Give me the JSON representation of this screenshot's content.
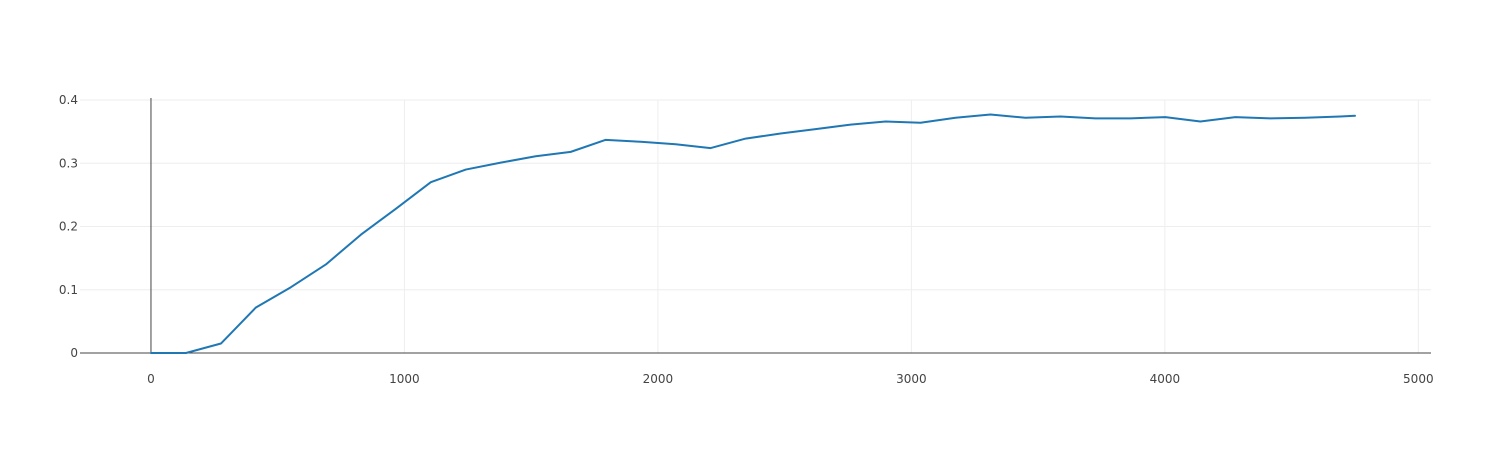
{
  "colors": {
    "series": "#1f77b4",
    "grid": "#eeeeee",
    "axis": "#444444",
    "text": "#444444"
  },
  "chart_data": {
    "type": "line",
    "title": "",
    "xlabel": "",
    "ylabel": "",
    "xlim": [
      -280,
      5050
    ],
    "ylim": [
      0,
      0.4
    ],
    "grid": true,
    "legend": "none",
    "x_ticks": [
      0,
      1000,
      2000,
      3000,
      4000,
      5000
    ],
    "x_tick_labels": [
      "0",
      "1000",
      "2000",
      "3000",
      "4000",
      "5000"
    ],
    "y_ticks": [
      0,
      0.1,
      0.2,
      0.3,
      0.4
    ],
    "y_tick_labels": [
      "0",
      "0.1",
      "0.2",
      "0.3",
      "0.4"
    ],
    "series": [
      {
        "x": [
          0,
          138,
          276,
          414,
          552,
          690,
          828,
          966,
          1104,
          1242,
          1380,
          1518,
          1656,
          1794,
          1932,
          2070,
          2208,
          2346,
          2484,
          2622,
          2760,
          2898,
          3036,
          3174,
          3312,
          3450,
          3588,
          3726,
          3864,
          4002,
          4140,
          4278,
          4416,
          4554,
          4692,
          4750
        ],
        "y": [
          0,
          0,
          0.015,
          0.072,
          0.104,
          0.14,
          0.187,
          0.228,
          0.27,
          0.29,
          0.301,
          0.311,
          0.318,
          0.337,
          0.334,
          0.33,
          0.324,
          0.339,
          0.347,
          0.354,
          0.361,
          0.366,
          0.364,
          0.372,
          0.377,
          0.372,
          0.374,
          0.371,
          0.371,
          0.373,
          0.366,
          0.373,
          0.371,
          0.372,
          0.374,
          0.375
        ]
      }
    ]
  }
}
